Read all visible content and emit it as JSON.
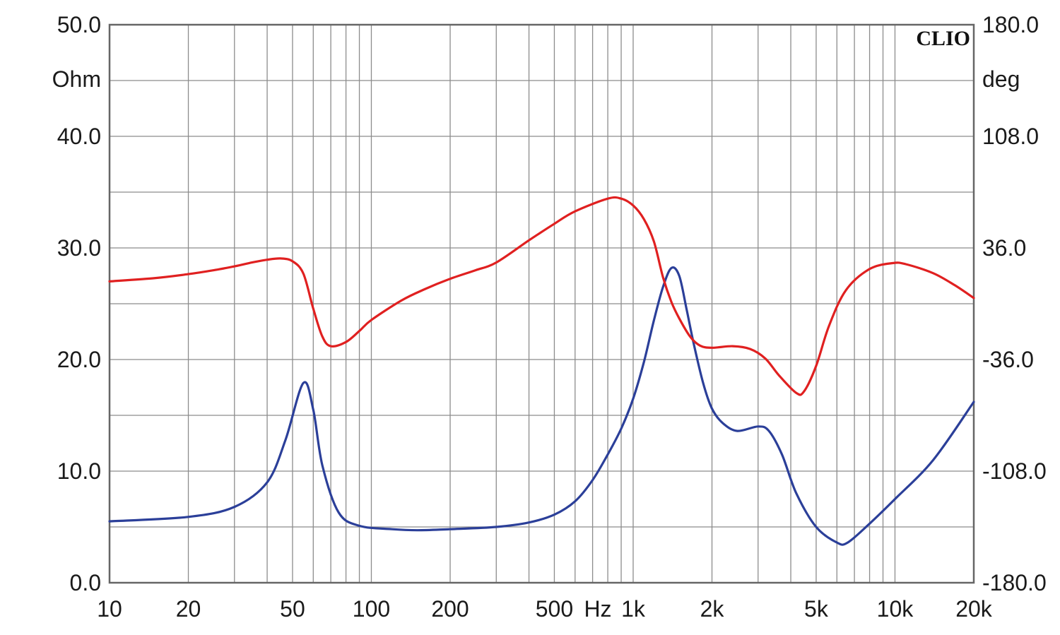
{
  "chart_data": {
    "type": "line",
    "brand": "CLIO",
    "x_scale": "log",
    "xlim": [
      10,
      20000
    ],
    "x_ticks": [
      {
        "value": 10,
        "label": "10"
      },
      {
        "value": 20,
        "label": "20"
      },
      {
        "value": 50,
        "label": "50"
      },
      {
        "value": 100,
        "label": "100"
      },
      {
        "value": 200,
        "label": "200"
      },
      {
        "value": 500,
        "label": "500"
      },
      {
        "value": 1000,
        "label": "1k"
      },
      {
        "value": 2000,
        "label": "2k"
      },
      {
        "value": 5000,
        "label": "5k"
      },
      {
        "value": 10000,
        "label": "10k"
      },
      {
        "value": 20000,
        "label": "20k"
      }
    ],
    "x_unit_label": "Hz",
    "y_left": {
      "unit": "Ohm",
      "ylim": [
        0,
        50
      ],
      "ticks": [
        {
          "value": 0,
          "label": "0.0"
        },
        {
          "value": 10,
          "label": "10.0"
        },
        {
          "value": 20,
          "label": "20.0"
        },
        {
          "value": 30,
          "label": "30.0"
        },
        {
          "value": 40,
          "label": "40.0"
        },
        {
          "value": 50,
          "label": "50.0"
        }
      ]
    },
    "y_right": {
      "unit": "deg",
      "ylim": [
        -180,
        180
      ],
      "ticks": [
        {
          "value": -180,
          "label": "-180.0"
        },
        {
          "value": -108,
          "label": "-108.0"
        },
        {
          "value": -36,
          "label": "-36.0"
        },
        {
          "value": 36,
          "label": "36.0"
        },
        {
          "value": 108,
          "label": "108.0"
        },
        {
          "value": 180,
          "label": "180.0"
        }
      ]
    },
    "grid": true,
    "series": [
      {
        "axis": "left",
        "color": "#2b3f99",
        "points": [
          [
            10,
            5.5
          ],
          [
            20,
            5.9
          ],
          [
            30,
            6.8
          ],
          [
            40,
            9.0
          ],
          [
            47,
            12.8
          ],
          [
            55,
            17.9
          ],
          [
            60,
            15.5
          ],
          [
            65,
            10.5
          ],
          [
            75,
            6.3
          ],
          [
            90,
            5.1
          ],
          [
            120,
            4.8
          ],
          [
            150,
            4.7
          ],
          [
            200,
            4.8
          ],
          [
            300,
            5.0
          ],
          [
            400,
            5.4
          ],
          [
            500,
            6.1
          ],
          [
            600,
            7.3
          ],
          [
            700,
            9.2
          ],
          [
            800,
            11.5
          ],
          [
            900,
            13.8
          ],
          [
            1000,
            16.5
          ],
          [
            1100,
            19.8
          ],
          [
            1200,
            23.5
          ],
          [
            1300,
            26.5
          ],
          [
            1400,
            28.2
          ],
          [
            1500,
            27.5
          ],
          [
            1600,
            24.5
          ],
          [
            1700,
            21.5
          ],
          [
            1850,
            17.9
          ],
          [
            2000,
            15.6
          ],
          [
            2200,
            14.3
          ],
          [
            2500,
            13.6
          ],
          [
            3000,
            14.0
          ],
          [
            3300,
            13.6
          ],
          [
            3700,
            11.5
          ],
          [
            4200,
            8.0
          ],
          [
            5000,
            5.0
          ],
          [
            6000,
            3.6
          ],
          [
            6600,
            3.6
          ],
          [
            8000,
            5.3
          ],
          [
            10000,
            7.5
          ],
          [
            14000,
            11.0
          ],
          [
            20000,
            16.2
          ]
        ]
      },
      {
        "axis": "right",
        "color": "#e02020",
        "points": [
          [
            10,
            14.4
          ],
          [
            15,
            16.6
          ],
          [
            20,
            19.1
          ],
          [
            25,
            21.6
          ],
          [
            30,
            24.1
          ],
          [
            35,
            26.6
          ],
          [
            40,
            28.4
          ],
          [
            45,
            29.2
          ],
          [
            50,
            27.4
          ],
          [
            55,
            19.4
          ],
          [
            60,
            -3.2
          ],
          [
            65,
            -21.2
          ],
          [
            70,
            -27.4
          ],
          [
            80,
            -24.7
          ],
          [
            90,
            -17.6
          ],
          [
            100,
            -10.5
          ],
          [
            130,
            2.0
          ],
          [
            160,
            9.4
          ],
          [
            200,
            16.1
          ],
          [
            250,
            21.6
          ],
          [
            300,
            26.6
          ],
          [
            400,
            40.9
          ],
          [
            500,
            51.6
          ],
          [
            600,
            59.6
          ],
          [
            800,
            67.8
          ],
          [
            900,
            67.8
          ],
          [
            1000,
            63.4
          ],
          [
            1100,
            54.5
          ],
          [
            1200,
            40.2
          ],
          [
            1300,
            17.1
          ],
          [
            1400,
            1.1
          ],
          [
            1500,
            -9.5
          ],
          [
            1650,
            -21.2
          ],
          [
            1800,
            -27.0
          ],
          [
            2000,
            -28.4
          ],
          [
            2400,
            -27.4
          ],
          [
            2800,
            -29.2
          ],
          [
            3200,
            -35.4
          ],
          [
            3600,
            -46.1
          ],
          [
            4200,
            -57.6
          ],
          [
            4500,
            -56.4
          ],
          [
            5000,
            -40.1
          ],
          [
            5600,
            -14.2
          ],
          [
            6500,
            8.8
          ],
          [
            8000,
            22.4
          ],
          [
            9800,
            26.2
          ],
          [
            11000,
            25.5
          ],
          [
            14000,
            19.7
          ],
          [
            17000,
            11.7
          ],
          [
            20000,
            3.7
          ]
        ]
      }
    ]
  }
}
